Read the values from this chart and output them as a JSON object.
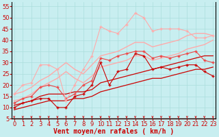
{
  "title": "",
  "xlabel": "Vent moyen/en rafales ( km/h )",
  "ylabel": "",
  "background_color": "#c8eef0",
  "grid_color": "#aadddd",
  "x_ticks": [
    0,
    1,
    2,
    3,
    4,
    5,
    6,
    7,
    8,
    9,
    10,
    11,
    12,
    13,
    14,
    15,
    16,
    17,
    18,
    19,
    20,
    21,
    22,
    23
  ],
  "y_ticks": [
    5,
    10,
    15,
    20,
    25,
    30,
    35,
    40,
    45,
    50,
    55
  ],
  "ylim": [
    5,
    57
  ],
  "xlim": [
    -0.3,
    23.3
  ],
  "lines": [
    {
      "x": [
        0,
        1,
        2,
        3,
        4,
        5,
        6,
        7,
        8,
        9,
        10,
        11,
        12,
        13,
        14,
        15,
        16,
        17,
        18,
        19,
        20,
        21,
        22,
        23
      ],
      "y": [
        10,
        12,
        13,
        14,
        14,
        10,
        10,
        15,
        16,
        20,
        30,
        20,
        26,
        27,
        34,
        33,
        27,
        28,
        27,
        28,
        29,
        29,
        26,
        24
      ],
      "color": "#cc0000",
      "lw": 0.8,
      "marker": "+",
      "ms": 3.0
    },
    {
      "x": [
        0,
        1,
        2,
        3,
        4,
        5,
        6,
        7,
        8,
        9,
        10,
        11,
        12,
        13,
        14,
        15,
        16,
        17,
        18,
        19,
        20,
        21,
        22,
        23
      ],
      "y": [
        9,
        10,
        11,
        12,
        13,
        13,
        13,
        14,
        14,
        15,
        17,
        18,
        19,
        20,
        21,
        22,
        23,
        23,
        24,
        25,
        26,
        27,
        27,
        28
      ],
      "color": "#cc0000",
      "lw": 0.9,
      "marker": null,
      "ms": 0
    },
    {
      "x": [
        0,
        1,
        2,
        3,
        4,
        5,
        6,
        7,
        8,
        9,
        10,
        11,
        12,
        13,
        14,
        15,
        16,
        17,
        18,
        19,
        20,
        21,
        22,
        23
      ],
      "y": [
        11,
        12,
        13,
        15,
        16,
        16,
        16,
        17,
        17,
        18,
        21,
        22,
        23,
        24,
        25,
        26,
        27,
        28,
        29,
        30,
        31,
        32,
        33,
        33
      ],
      "color": "#cc0000",
      "lw": 0.9,
      "marker": null,
      "ms": 0
    },
    {
      "x": [
        0,
        1,
        2,
        3,
        4,
        5,
        6,
        7,
        8,
        9,
        10,
        11,
        12,
        13,
        14,
        15,
        16,
        17,
        18,
        19,
        20,
        21,
        22,
        23
      ],
      "y": [
        12,
        14,
        15,
        19,
        20,
        19,
        14,
        16,
        20,
        22,
        32,
        31,
        33,
        34,
        35,
        35,
        32,
        33,
        32,
        33,
        34,
        35,
        31,
        30
      ],
      "color": "#ee4444",
      "lw": 0.8,
      "marker": "+",
      "ms": 3.0
    },
    {
      "x": [
        0,
        1,
        2,
        3,
        4,
        5,
        6,
        7,
        8,
        9,
        10,
        11,
        12,
        13,
        14,
        15,
        16,
        17,
        18,
        19,
        20,
        21,
        22,
        23
      ],
      "y": [
        16,
        17,
        19,
        22,
        24,
        27,
        30,
        27,
        25,
        29,
        33,
        34,
        35,
        37,
        39,
        39,
        37,
        38,
        39,
        40,
        42,
        43,
        43,
        42
      ],
      "color": "#ffaaaa",
      "lw": 1.0,
      "marker": null,
      "ms": 0
    },
    {
      "x": [
        0,
        1,
        2,
        3,
        4,
        5,
        6,
        7,
        8,
        9,
        10,
        11,
        12,
        13,
        14,
        15,
        16,
        17,
        18,
        19,
        20,
        21,
        22,
        23
      ],
      "y": [
        13,
        14,
        16,
        19,
        21,
        23,
        26,
        23,
        21,
        24,
        28,
        29,
        30,
        31,
        33,
        33,
        31,
        32,
        33,
        34,
        36,
        37,
        38,
        40
      ],
      "color": "#ffaaaa",
      "lw": 1.0,
      "marker": null,
      "ms": 0
    },
    {
      "x": [
        0,
        1,
        2,
        3,
        4,
        5,
        6,
        7,
        8,
        9,
        10,
        11,
        12,
        13,
        14,
        15,
        16,
        17,
        18,
        19,
        20,
        21,
        22,
        23
      ],
      "y": [
        16,
        20,
        21,
        29,
        29,
        27,
        13,
        20,
        27,
        33,
        46,
        44,
        43,
        47,
        52,
        50,
        44,
        45,
        45,
        45,
        44,
        41,
        41,
        42
      ],
      "color": "#ffaaaa",
      "lw": 0.8,
      "marker": "+",
      "ms": 3.0
    }
  ],
  "arrow_color": "#cc0000",
  "xlabel_color": "#cc0000",
  "xlabel_fontsize": 7,
  "tick_fontsize": 6,
  "tick_color": "#cc0000"
}
